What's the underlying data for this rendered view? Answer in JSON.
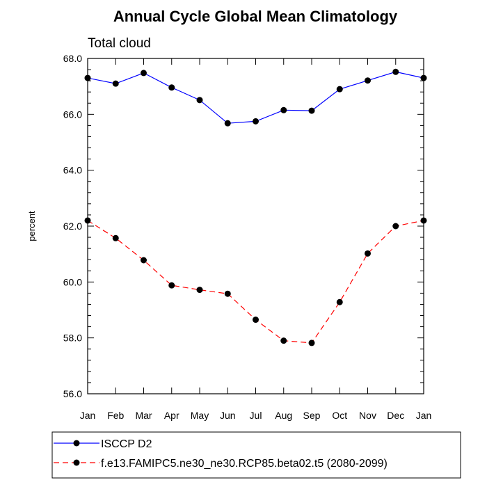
{
  "chart_data": {
    "type": "line",
    "title": "Annual Cycle Global Mean Climatology",
    "subtitle": "Total cloud",
    "xlabel": "",
    "ylabel": "percent",
    "categories": [
      "Jan",
      "Feb",
      "Mar",
      "Apr",
      "May",
      "Jun",
      "Jul",
      "Aug",
      "Sep",
      "Oct",
      "Nov",
      "Dec",
      "Jan"
    ],
    "ylim": [
      56.0,
      68.0
    ],
    "yticks": [
      "56.0",
      "58.0",
      "60.0",
      "62.0",
      "64.0",
      "66.0",
      "68.0"
    ],
    "series": [
      {
        "name": "ISCCP D2",
        "color": "#0000ff",
        "style": "solid",
        "values": [
          67.3,
          67.1,
          67.48,
          66.96,
          66.51,
          65.68,
          65.75,
          66.15,
          66.13,
          66.9,
          67.21,
          67.52,
          67.3
        ]
      },
      {
        "name": "f.e13.FAMIPC5.ne30_ne30.RCP85.beta02.t5 (2080-2099)",
        "color": "#ff0000",
        "style": "dashed",
        "values": [
          62.2,
          61.57,
          60.78,
          59.88,
          59.72,
          59.58,
          58.65,
          57.9,
          57.82,
          59.28,
          61.02,
          62.0,
          62.2
        ]
      }
    ]
  }
}
